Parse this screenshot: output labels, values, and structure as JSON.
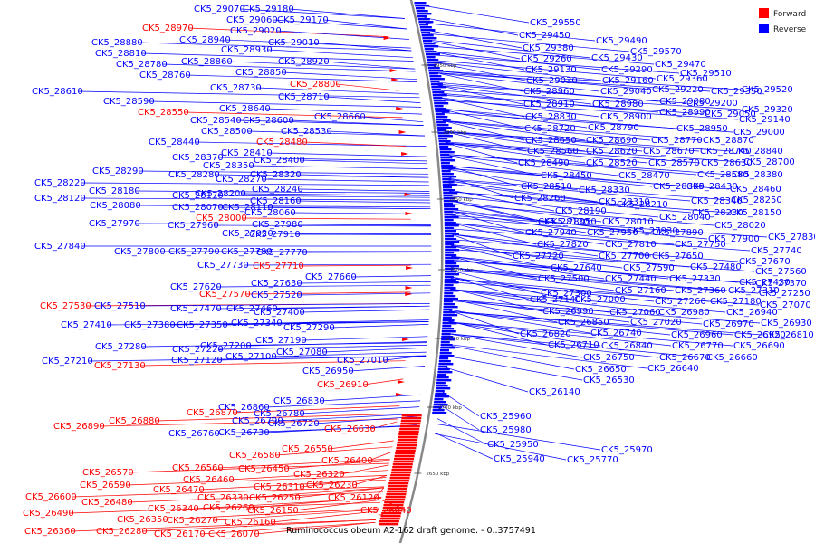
{
  "caption": "Ruminococcus obeum A2-162 draft genome. - 0..3757491",
  "legend": [
    {
      "label": "Forward",
      "color": "#ff0000"
    },
    {
      "label": "Reverse",
      "color": "#0000ff"
    }
  ],
  "colors": {
    "forward": "#ff0000",
    "reverse": "#0000ff",
    "backbone": "#888888"
  },
  "ticks": [
    "2950 kbp",
    "2900 kbp",
    "2850 kbp",
    "2800 kbp",
    "2750 kbp",
    "2700 kbp",
    "2650 kbp"
  ],
  "labels": [
    {
      "id": "CK5_29070",
      "dir": "reverse"
    },
    {
      "id": "CK5_29180",
      "dir": "reverse"
    },
    {
      "id": "CK5_29060",
      "dir": "reverse"
    },
    {
      "id": "CK5_29170",
      "dir": "reverse"
    },
    {
      "id": "CK5_28970",
      "dir": "forward"
    },
    {
      "id": "CK5_29020",
      "dir": "reverse"
    },
    {
      "id": "CK5_28940",
      "dir": "reverse"
    },
    {
      "id": "CK5_29010",
      "dir": "reverse"
    },
    {
      "id": "CK5_28880",
      "dir": "reverse"
    },
    {
      "id": "CK5_28930",
      "dir": "reverse"
    },
    {
      "id": "CK5_28810",
      "dir": "reverse"
    },
    {
      "id": "CK5_28860",
      "dir": "reverse"
    },
    {
      "id": "CK5_28920",
      "dir": "reverse"
    },
    {
      "id": "CK5_28780",
      "dir": "reverse"
    },
    {
      "id": "CK5_28850",
      "dir": "reverse"
    },
    {
      "id": "CK5_28760",
      "dir": "reverse"
    },
    {
      "id": "CK5_28800",
      "dir": "forward"
    },
    {
      "id": "CK5_28730",
      "dir": "reverse"
    },
    {
      "id": "CK5_28610",
      "dir": "reverse"
    },
    {
      "id": "CK5_28710",
      "dir": "reverse"
    },
    {
      "id": "CK5_28590",
      "dir": "reverse"
    },
    {
      "id": "CK5_28640",
      "dir": "reverse"
    },
    {
      "id": "CK5_28550",
      "dir": "forward"
    },
    {
      "id": "CK5_28660",
      "dir": "reverse"
    },
    {
      "id": "CK5_28540",
      "dir": "reverse"
    },
    {
      "id": "CK5_28600",
      "dir": "reverse"
    },
    {
      "id": "CK5_28500",
      "dir": "reverse"
    },
    {
      "id": "CK5_28530",
      "dir": "reverse"
    },
    {
      "id": "CK5_28440",
      "dir": "reverse"
    },
    {
      "id": "CK5_28480",
      "dir": "forward"
    },
    {
      "id": "CK5_28410",
      "dir": "reverse"
    },
    {
      "id": "CK5_28370",
      "dir": "reverse"
    },
    {
      "id": "CK5_28400",
      "dir": "reverse"
    },
    {
      "id": "CK5_28350",
      "dir": "reverse"
    },
    {
      "id": "CK5_28290",
      "dir": "reverse"
    },
    {
      "id": "CK5_28280",
      "dir": "reverse"
    },
    {
      "id": "CK5_28320",
      "dir": "reverse"
    },
    {
      "id": "CK5_28270",
      "dir": "reverse"
    },
    {
      "id": "CK5_28220",
      "dir": "reverse"
    },
    {
      "id": "CK5_28180",
      "dir": "reverse"
    },
    {
      "id": "CK5_28240",
      "dir": "reverse"
    },
    {
      "id": "CK5_28170",
      "dir": "reverse"
    },
    {
      "id": "CK5_28200",
      "dir": "reverse"
    },
    {
      "id": "CK5_28120",
      "dir": "reverse"
    },
    {
      "id": "CK5_28160",
      "dir": "reverse"
    },
    {
      "id": "CK5_28080",
      "dir": "reverse"
    },
    {
      "id": "CK5_28070",
      "dir": "reverse"
    },
    {
      "id": "CK5_28110",
      "dir": "reverse"
    },
    {
      "id": "CK5_28060",
      "dir": "reverse"
    },
    {
      "id": "CK5_28000",
      "dir": "forward"
    },
    {
      "id": "CK5_27970",
      "dir": "reverse"
    },
    {
      "id": "CK5_27980",
      "dir": "reverse"
    },
    {
      "id": "CK5_27960",
      "dir": "reverse"
    },
    {
      "id": "CK5_27920",
      "dir": "reverse"
    },
    {
      "id": "CK5_27910",
      "dir": "reverse"
    },
    {
      "id": "CK5_27840",
      "dir": "reverse"
    },
    {
      "id": "CK5_27800",
      "dir": "reverse"
    },
    {
      "id": "CK5_27790",
      "dir": "reverse"
    },
    {
      "id": "CK5_27780",
      "dir": "reverse"
    },
    {
      "id": "CK5_27770",
      "dir": "reverse"
    },
    {
      "id": "CK5_27730",
      "dir": "reverse"
    },
    {
      "id": "CK5_27710",
      "dir": "forward"
    },
    {
      "id": "CK5_27660",
      "dir": "reverse"
    },
    {
      "id": "CK5_27620",
      "dir": "reverse"
    },
    {
      "id": "CK5_27630",
      "dir": "reverse"
    },
    {
      "id": "CK5_27570",
      "dir": "forward"
    },
    {
      "id": "CK5_27520",
      "dir": "reverse"
    },
    {
      "id": "CK5_27530",
      "dir": "forward"
    },
    {
      "id": "CK5_27510",
      "dir": "reverse"
    },
    {
      "id": "CK5_27470",
      "dir": "reverse"
    },
    {
      "id": "CK5_27460",
      "dir": "reverse"
    },
    {
      "id": "CK5_27400",
      "dir": "reverse"
    },
    {
      "id": "CK5_27410",
      "dir": "reverse"
    },
    {
      "id": "CK5_27380",
      "dir": "reverse"
    },
    {
      "id": "CK5_27350",
      "dir": "reverse"
    },
    {
      "id": "CK5_27340",
      "dir": "reverse"
    },
    {
      "id": "CK5_27290",
      "dir": "reverse"
    },
    {
      "id": "CK5_27190",
      "dir": "reverse"
    },
    {
      "id": "CK5_27280",
      "dir": "reverse"
    },
    {
      "id": "CK5_27220",
      "dir": "reverse"
    },
    {
      "id": "CK5_27200",
      "dir": "reverse"
    },
    {
      "id": "CK5_27080",
      "dir": "reverse"
    },
    {
      "id": "CK5_27210",
      "dir": "reverse"
    },
    {
      "id": "CK5_27130",
      "dir": "forward"
    },
    {
      "id": "CK5_27120",
      "dir": "reverse"
    },
    {
      "id": "CK5_27100",
      "dir": "reverse"
    },
    {
      "id": "CK5_27010",
      "dir": "reverse"
    },
    {
      "id": "CK5_26950",
      "dir": "reverse"
    },
    {
      "id": "CK5_26910",
      "dir": "forward"
    },
    {
      "id": "CK5_26830",
      "dir": "reverse"
    },
    {
      "id": "CK5_26860",
      "dir": "reverse"
    },
    {
      "id": "CK5_26870",
      "dir": "forward"
    },
    {
      "id": "CK5_26780",
      "dir": "reverse"
    },
    {
      "id": "CK5_26880",
      "dir": "forward"
    },
    {
      "id": "CK5_26790",
      "dir": "reverse"
    },
    {
      "id": "CK5_26890",
      "dir": "forward"
    },
    {
      "id": "CK5_26720",
      "dir": "reverse"
    },
    {
      "id": "CK5_26630",
      "dir": "forward"
    },
    {
      "id": "CK5_26760",
      "dir": "reverse"
    },
    {
      "id": "CK5_26730",
      "dir": "reverse"
    },
    {
      "id": "CK5_26550",
      "dir": "forward"
    },
    {
      "id": "CK5_26580",
      "dir": "forward"
    },
    {
      "id": "CK5_26400",
      "dir": "forward"
    },
    {
      "id": "CK5_26560",
      "dir": "forward"
    },
    {
      "id": "CK5_26450",
      "dir": "forward"
    },
    {
      "id": "CK5_26570",
      "dir": "forward"
    },
    {
      "id": "CK5_26460",
      "dir": "forward"
    },
    {
      "id": "CK5_26320",
      "dir": "forward"
    },
    {
      "id": "CK5_26590",
      "dir": "forward"
    },
    {
      "id": "CK5_26470",
      "dir": "forward"
    },
    {
      "id": "CK5_26310",
      "dir": "forward"
    },
    {
      "id": "CK5_26230",
      "dir": "forward"
    },
    {
      "id": "CK5_26600",
      "dir": "forward"
    },
    {
      "id": "CK5_26330",
      "dir": "forward"
    },
    {
      "id": "CK5_26250",
      "dir": "forward"
    },
    {
      "id": "CK5_26480",
      "dir": "forward"
    },
    {
      "id": "CK5_26120",
      "dir": "forward"
    },
    {
      "id": "CK5_26340",
      "dir": "forward"
    },
    {
      "id": "CK5_26260",
      "dir": "forward"
    },
    {
      "id": "CK5_26490",
      "dir": "forward"
    },
    {
      "id": "CK5_26150",
      "dir": "forward"
    },
    {
      "id": "CK5_26040",
      "dir": "forward"
    },
    {
      "id": "CK5_26350",
      "dir": "forward"
    },
    {
      "id": "CK5_26270",
      "dir": "forward"
    },
    {
      "id": "CK5_26160",
      "dir": "forward"
    },
    {
      "id": "CK5_26360",
      "dir": "forward"
    },
    {
      "id": "CK5_26280",
      "dir": "forward"
    },
    {
      "id": "CK5_26170",
      "dir": "forward"
    },
    {
      "id": "CK5_26070",
      "dir": "forward"
    },
    {
      "id": "CK5_29550",
      "dir": "reverse"
    },
    {
      "id": "CK5_29450",
      "dir": "reverse"
    },
    {
      "id": "CK5_29490",
      "dir": "reverse"
    },
    {
      "id": "CK5_29380",
      "dir": "reverse"
    },
    {
      "id": "CK5_29570",
      "dir": "reverse"
    },
    {
      "id": "CK5_29260",
      "dir": "reverse"
    },
    {
      "id": "CK5_29430",
      "dir": "reverse"
    },
    {
      "id": "CK5_29470",
      "dir": "reverse"
    },
    {
      "id": "CK5_29130",
      "dir": "reverse"
    },
    {
      "id": "CK5_29290",
      "dir": "reverse"
    },
    {
      "id": "CK5_29510",
      "dir": "reverse"
    },
    {
      "id": "CK5_29030",
      "dir": "reverse"
    },
    {
      "id": "CK5_29160",
      "dir": "reverse"
    },
    {
      "id": "CK5_29360",
      "dir": "reverse"
    },
    {
      "id": "CK5_28960",
      "dir": "reverse"
    },
    {
      "id": "CK5_29040",
      "dir": "reverse"
    },
    {
      "id": "CK5_29220",
      "dir": "reverse"
    },
    {
      "id": "CK5_29350",
      "dir": "reverse"
    },
    {
      "id": "CK5_29520",
      "dir": "reverse"
    },
    {
      "id": "CK5_29080",
      "dir": "reverse"
    },
    {
      "id": "CK5_28910",
      "dir": "reverse"
    },
    {
      "id": "CK5_28980",
      "dir": "reverse"
    },
    {
      "id": "CK5_29200",
      "dir": "reverse"
    },
    {
      "id": "CK5_29320",
      "dir": "reverse"
    },
    {
      "id": "CK5_28990",
      "dir": "reverse"
    },
    {
      "id": "CK5_28830",
      "dir": "reverse"
    },
    {
      "id": "CK5_28900",
      "dir": "reverse"
    },
    {
      "id": "CK5_29050",
      "dir": "reverse"
    },
    {
      "id": "CK5_29140",
      "dir": "reverse"
    },
    {
      "id": "CK5_28720",
      "dir": "reverse"
    },
    {
      "id": "CK5_28790",
      "dir": "reverse"
    },
    {
      "id": "CK5_28950",
      "dir": "reverse"
    },
    {
      "id": "CK5_29000",
      "dir": "reverse"
    },
    {
      "id": "CK5_28650",
      "dir": "reverse"
    },
    {
      "id": "CK5_28690",
      "dir": "reverse"
    },
    {
      "id": "CK5_28770",
      "dir": "reverse"
    },
    {
      "id": "CK5_28870",
      "dir": "reverse"
    },
    {
      "id": "CK5_28560",
      "dir": "reverse"
    },
    {
      "id": "CK5_28620",
      "dir": "reverse"
    },
    {
      "id": "CK5_28670",
      "dir": "reverse"
    },
    {
      "id": "CK5_28740",
      "dir": "reverse"
    },
    {
      "id": "CK5_28840",
      "dir": "reverse"
    },
    {
      "id": "CK5_28490",
      "dir": "reverse"
    },
    {
      "id": "CK5_28520",
      "dir": "reverse"
    },
    {
      "id": "CK5_28570",
      "dir": "reverse"
    },
    {
      "id": "CK5_28630",
      "dir": "reverse"
    },
    {
      "id": "CK5_28700",
      "dir": "reverse"
    },
    {
      "id": "CK5_28450",
      "dir": "reverse"
    },
    {
      "id": "CK5_28470",
      "dir": "reverse"
    },
    {
      "id": "CK5_28580",
      "dir": "reverse"
    },
    {
      "id": "CK5_28380",
      "dir": "reverse"
    },
    {
      "id": "CK5_28510",
      "dir": "reverse"
    },
    {
      "id": "CK5_28390",
      "dir": "reverse"
    },
    {
      "id": "CK5_28430",
      "dir": "reverse"
    },
    {
      "id": "CK5_28460",
      "dir": "reverse"
    },
    {
      "id": "CK5_28330",
      "dir": "reverse"
    },
    {
      "id": "CK5_28260",
      "dir": "reverse"
    },
    {
      "id": "CK5_28310",
      "dir": "reverse"
    },
    {
      "id": "CK5_28340",
      "dir": "reverse"
    },
    {
      "id": "CK5_28250",
      "dir": "reverse"
    },
    {
      "id": "CK5_28210",
      "dir": "reverse"
    },
    {
      "id": "CK5_28190",
      "dir": "reverse"
    },
    {
      "id": "CK5_28230",
      "dir": "reverse"
    },
    {
      "id": "CK5_28150",
      "dir": "reverse"
    },
    {
      "id": "CK5_28130",
      "dir": "reverse"
    },
    {
      "id": "CK5_28040",
      "dir": "reverse"
    },
    {
      "id": "CK5_28020",
      "dir": "reverse"
    },
    {
      "id": "CK5_28050",
      "dir": "reverse"
    },
    {
      "id": "CK5_28010",
      "dir": "reverse"
    },
    {
      "id": "CK5_27930",
      "dir": "reverse"
    },
    {
      "id": "CK5_27940",
      "dir": "reverse"
    },
    {
      "id": "CK5_27950",
      "dir": "reverse"
    },
    {
      "id": "CK5_27890",
      "dir": "reverse"
    },
    {
      "id": "CK5_27900",
      "dir": "reverse"
    },
    {
      "id": "CK5_27830",
      "dir": "reverse"
    },
    {
      "id": "CK5_27820",
      "dir": "reverse"
    },
    {
      "id": "CK5_27810",
      "dir": "reverse"
    },
    {
      "id": "CK5_27750",
      "dir": "reverse"
    },
    {
      "id": "CK5_27740",
      "dir": "reverse"
    },
    {
      "id": "CK5_27720",
      "dir": "reverse"
    },
    {
      "id": "CK5_27700",
      "dir": "reverse"
    },
    {
      "id": "CK5_27650",
      "dir": "reverse"
    },
    {
      "id": "CK5_27670",
      "dir": "reverse"
    },
    {
      "id": "CK5_27640",
      "dir": "reverse"
    },
    {
      "id": "CK5_27590",
      "dir": "reverse"
    },
    {
      "id": "CK5_27480",
      "dir": "reverse"
    },
    {
      "id": "CK5_27560",
      "dir": "reverse"
    },
    {
      "id": "CK5_27500",
      "dir": "reverse"
    },
    {
      "id": "CK5_27440",
      "dir": "reverse"
    },
    {
      "id": "CK5_27330",
      "dir": "reverse"
    },
    {
      "id": "CK5_27430",
      "dir": "reverse"
    },
    {
      "id": "CK5_27370",
      "dir": "reverse"
    },
    {
      "id": "CK5_27300",
      "dir": "reverse"
    },
    {
      "id": "CK5_27160",
      "dir": "reverse"
    },
    {
      "id": "CK5_27360",
      "dir": "reverse"
    },
    {
      "id": "CK5_27310",
      "dir": "reverse"
    },
    {
      "id": "CK5_27250",
      "dir": "reverse"
    },
    {
      "id": "CK5_27140",
      "dir": "reverse"
    },
    {
      "id": "CK5_27000",
      "dir": "reverse"
    },
    {
      "id": "CK5_27260",
      "dir": "reverse"
    },
    {
      "id": "CK5_27180",
      "dir": "reverse"
    },
    {
      "id": "CK5_27070",
      "dir": "reverse"
    },
    {
      "id": "CK5_26990",
      "dir": "reverse"
    },
    {
      "id": "CK5_27060",
      "dir": "reverse"
    },
    {
      "id": "CK5_26980",
      "dir": "reverse"
    },
    {
      "id": "CK5_26940",
      "dir": "reverse"
    },
    {
      "id": "CK5_26850",
      "dir": "reverse"
    },
    {
      "id": "CK5_27020",
      "dir": "reverse"
    },
    {
      "id": "CK5_26970",
      "dir": "reverse"
    },
    {
      "id": "CK5_26930",
      "dir": "reverse"
    },
    {
      "id": "CK5_26820",
      "dir": "reverse"
    },
    {
      "id": "CK5_26740",
      "dir": "reverse"
    },
    {
      "id": "CK5_26960",
      "dir": "reverse"
    },
    {
      "id": "CK5_26920",
      "dir": "reverse"
    },
    {
      "id": "CK5_26810",
      "dir": "reverse"
    },
    {
      "id": "CK5_26710",
      "dir": "reverse"
    },
    {
      "id": "CK5_26840",
      "dir": "reverse"
    },
    {
      "id": "CK5_26770",
      "dir": "reverse"
    },
    {
      "id": "CK5_26690",
      "dir": "reverse"
    },
    {
      "id": "CK5_26750",
      "dir": "reverse"
    },
    {
      "id": "CK5_26670",
      "dir": "reverse"
    },
    {
      "id": "CK5_26660",
      "dir": "reverse"
    },
    {
      "id": "CK5_26650",
      "dir": "reverse"
    },
    {
      "id": "CK5_26640",
      "dir": "reverse"
    },
    {
      "id": "CK5_26530",
      "dir": "reverse"
    },
    {
      "id": "CK5_26140",
      "dir": "reverse"
    },
    {
      "id": "CK5_25960",
      "dir": "reverse"
    },
    {
      "id": "CK5_25980",
      "dir": "reverse"
    },
    {
      "id": "CK5_25950",
      "dir": "reverse"
    },
    {
      "id": "CK5_25970",
      "dir": "reverse"
    },
    {
      "id": "CK5_25940",
      "dir": "reverse"
    },
    {
      "id": "CK5_25770",
      "dir": "reverse"
    }
  ]
}
